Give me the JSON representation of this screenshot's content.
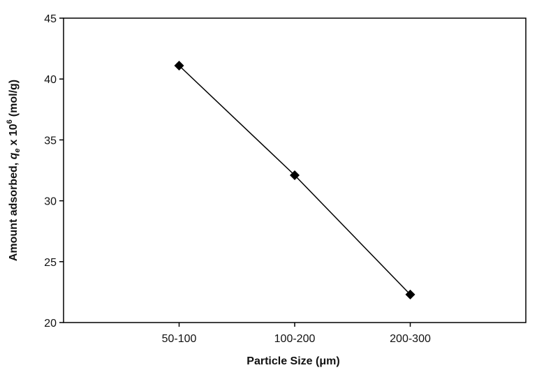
{
  "chart_data": {
    "type": "line",
    "x_label": "Particle Size (μm)",
    "y_label": {
      "text": "Amount adsorbed,",
      "symbol": "q",
      "subscript": "e",
      "factor": "x 10",
      "exponent": "6",
      "unit": "(mol/g)"
    },
    "categories": [
      "50-100",
      "100-200",
      "200-300"
    ],
    "series": [
      {
        "color": "#000000",
        "values": [
          41.1,
          32.1,
          22.3
        ]
      }
    ],
    "ylim": [
      20,
      45
    ],
    "yticks": [
      20,
      25,
      30,
      35,
      40,
      45
    ]
  }
}
